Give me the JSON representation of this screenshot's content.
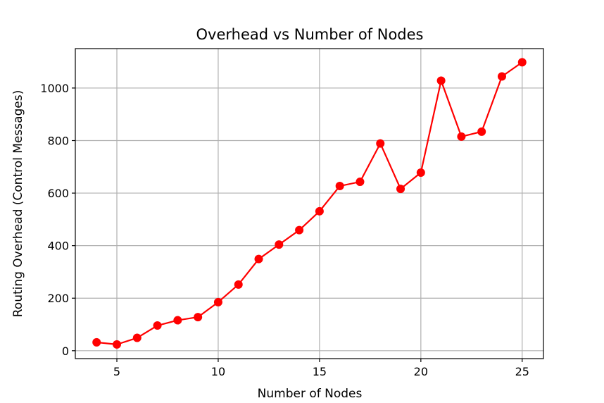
{
  "chart_data": {
    "type": "line",
    "title": "Overhead vs Number of Nodes",
    "xlabel": "Number of Nodes",
    "ylabel": "Routing Overhead (Control Messages)",
    "xlim": [
      2.95,
      26.05
    ],
    "ylim": [
      -30,
      1150
    ],
    "xticks": [
      5,
      10,
      15,
      20,
      25
    ],
    "yticks": [
      0,
      200,
      400,
      600,
      800,
      1000
    ],
    "grid": true,
    "series": [
      {
        "color": "#ff0000",
        "marker": "circle",
        "x": [
          4,
          5,
          6,
          7,
          8,
          9,
          10,
          11,
          12,
          13,
          14,
          15,
          16,
          17,
          18,
          19,
          20,
          21,
          22,
          23,
          24,
          25
        ],
        "y": [
          32,
          24,
          49,
          96,
          116,
          128,
          185,
          252,
          349,
          404,
          459,
          531,
          627,
          643,
          789,
          616,
          678,
          1028,
          815,
          834,
          1044,
          1098
        ]
      }
    ]
  }
}
